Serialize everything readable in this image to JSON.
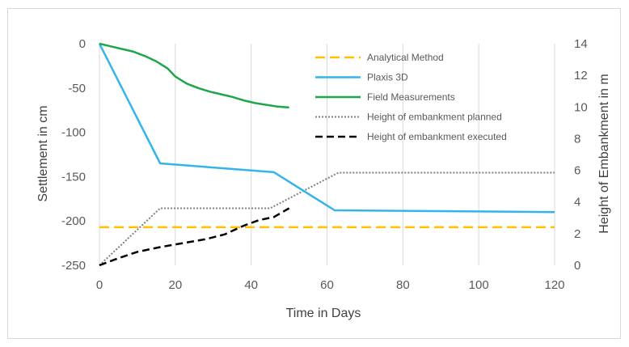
{
  "chart_data": {
    "type": "line",
    "xlabel": "Time in Days",
    "ylabel": "Settlement in cm",
    "y2label": "Height of Embankment in m",
    "xlim": [
      0,
      120
    ],
    "ylim": [
      -250,
      0
    ],
    "y2lim": [
      0,
      14
    ],
    "xticks": [
      0,
      20,
      40,
      60,
      80,
      100,
      120
    ],
    "yticks": [
      0,
      -50,
      -100,
      -150,
      -200,
      -250
    ],
    "y2ticks": [
      0,
      2,
      4,
      6,
      8,
      10,
      12,
      14
    ],
    "grid": "vertical",
    "legend_position": "top-right",
    "series": [
      {
        "name": "Analytical Method",
        "axis": "left",
        "color": "#ffc000",
        "dash": "long-dash",
        "x": [
          0,
          120
        ],
        "y": [
          -207,
          -207
        ]
      },
      {
        "name": "Plaxis 3D",
        "axis": "left",
        "color": "#33b4ea",
        "dash": "solid",
        "x": [
          0,
          16,
          46,
          62,
          120
        ],
        "y": [
          0,
          -135,
          -145,
          -188,
          -190
        ]
      },
      {
        "name": "Field Measurements",
        "axis": "left",
        "color": "#1ea64b",
        "dash": "solid",
        "x": [
          0,
          3,
          6,
          9,
          12,
          15,
          18,
          20,
          23,
          26,
          29,
          32,
          35,
          38,
          41,
          44,
          47,
          50
        ],
        "y": [
          0,
          -3,
          -6,
          -9,
          -14,
          -20,
          -28,
          -37,
          -45,
          -50,
          -54,
          -57,
          -60,
          -64,
          -67,
          -69,
          -71,
          -72
        ]
      },
      {
        "name": "Height of embankment planned",
        "axis": "right",
        "color": "#7f7f7f",
        "dash": "dotted",
        "x": [
          0,
          16,
          45,
          63,
          120
        ],
        "y": [
          0,
          3.6,
          3.6,
          5.85,
          5.85
        ]
      },
      {
        "name": "Height of embankment executed",
        "axis": "right",
        "color": "#000000",
        "dash": "dashed",
        "x": [
          0,
          5,
          10,
          16,
          22,
          28,
          33,
          38,
          42,
          46,
          50
        ],
        "y": [
          0,
          0.45,
          0.85,
          1.15,
          1.4,
          1.65,
          1.95,
          2.5,
          2.85,
          3.05,
          3.6
        ]
      }
    ]
  }
}
